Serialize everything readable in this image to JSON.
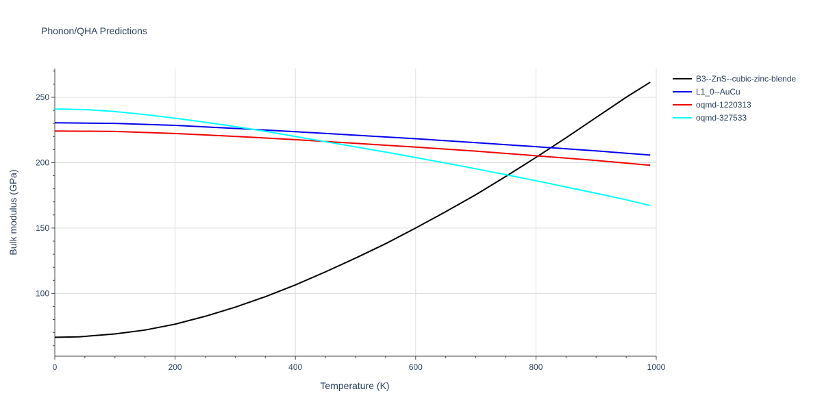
{
  "chart_data": {
    "type": "line",
    "title": "Phonon/QHA Predictions",
    "xlabel": "Temperature (K)",
    "ylabel": "Bulk modulus (GPa)",
    "xlim": [
      0,
      1000
    ],
    "ylim": [
      52,
      272
    ],
    "xticks": [
      0,
      200,
      400,
      600,
      800,
      1000
    ],
    "yticks": [
      100,
      150,
      200,
      250
    ],
    "grid": true,
    "legend_position": "top-right",
    "series": [
      {
        "name": "B3--ZnS--cubic-zinc-blende",
        "color": "#000000",
        "x": [
          0,
          40,
          100,
          150,
          200,
          250,
          300,
          350,
          400,
          450,
          500,
          550,
          600,
          650,
          700,
          750,
          800,
          850,
          900,
          950,
          990
        ],
        "y": [
          66.5,
          66.8,
          69,
          72,
          76.5,
          82.5,
          89.5,
          97.5,
          106.5,
          116.5,
          127,
          138,
          150,
          162.5,
          175.5,
          189.5,
          204,
          219,
          234.5,
          250,
          261.5
        ]
      },
      {
        "name": "L1_0--AuCu",
        "color": "#0000ee",
        "x": [
          0,
          100,
          200,
          300,
          400,
          500,
          600,
          700,
          800,
          900,
          990
        ],
        "y": [
          230.5,
          230,
          228.5,
          226.2,
          223.7,
          221,
          218.3,
          215.3,
          212.2,
          209,
          205.8
        ]
      },
      {
        "name": "oqmd-1220313",
        "color": "#ee0000",
        "x": [
          0,
          100,
          200,
          300,
          400,
          500,
          600,
          700,
          800,
          900,
          990
        ],
        "y": [
          224.2,
          223.9,
          222.3,
          220.1,
          217.6,
          214.8,
          211.9,
          208.8,
          205.3,
          201.7,
          198
        ]
      },
      {
        "name": "oqmd-327533",
        "color": "#00ffff",
        "x": [
          0,
          50,
          100,
          150,
          200,
          250,
          300,
          350,
          400,
          450,
          500,
          550,
          600,
          650,
          700,
          750,
          800,
          850,
          900,
          950,
          990
        ],
        "y": [
          241,
          240.6,
          239.1,
          236.8,
          234,
          230.9,
          227.6,
          224,
          220,
          216,
          212.1,
          208.1,
          203.9,
          199.7,
          195.3,
          190.8,
          186.2,
          181.4,
          176.6,
          171.6,
          167.2
        ]
      }
    ]
  }
}
